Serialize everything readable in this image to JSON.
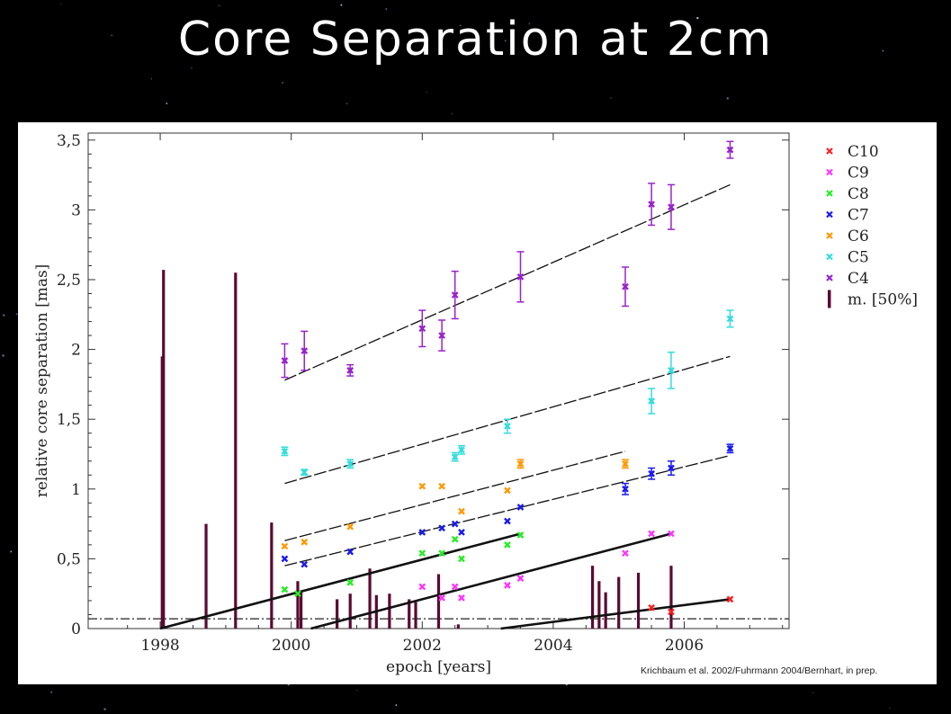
{
  "slide": {
    "title": "Core Separation at 2cm",
    "credit": "Krichbaum et al. 2002/Fuhrmann 2004/Bernhart, in prep."
  },
  "chart_data": {
    "type": "scatter",
    "xlabel": "epoch [years]",
    "ylabel": "relative core separation [mas]",
    "xlim": [
      1996.9,
      2007.6
    ],
    "ylim": [
      0,
      3.55
    ],
    "xticks": [
      1998,
      2000,
      2002,
      2004,
      2006
    ],
    "xtick_labels": [
      "1998",
      "2000",
      "2002",
      "2004",
      "2006"
    ],
    "yticks": [
      0,
      0.5,
      1,
      1.5,
      2,
      2.5,
      3,
      3.5
    ],
    "ytick_labels": [
      "0",
      "0,5",
      "1",
      "1,5",
      "2",
      "2,5",
      "3",
      "3,5"
    ],
    "legend_position": "right",
    "reference_line_y": 0.07,
    "series": [
      {
        "name": "C10",
        "color": "#ff2020",
        "points": [
          [
            2005.5,
            0.15
          ],
          [
            2005.8,
            0.12
          ],
          [
            2006.7,
            0.21
          ]
        ],
        "err": [],
        "fit": {
          "x": [
            2003.2,
            2006.7
          ],
          "y": [
            0.0,
            0.21
          ]
        }
      },
      {
        "name": "C9",
        "color": "#ff33ff",
        "points": [
          [
            2002.0,
            0.3
          ],
          [
            2002.3,
            0.22
          ],
          [
            2002.5,
            0.3
          ],
          [
            2002.6,
            0.22
          ],
          [
            2003.3,
            0.31
          ],
          [
            2003.5,
            0.36
          ],
          [
            2005.1,
            0.54
          ],
          [
            2005.5,
            0.68
          ],
          [
            2005.8,
            0.68
          ]
        ],
        "err": [],
        "fit": {
          "x": [
            2000.3,
            2005.8
          ],
          "y": [
            0.0,
            0.68
          ]
        }
      },
      {
        "name": "C8",
        "color": "#22ee22",
        "points": [
          [
            1999.9,
            0.28
          ],
          [
            2000.1,
            0.25
          ],
          [
            2000.9,
            0.33
          ],
          [
            2002.0,
            0.54
          ],
          [
            2002.3,
            0.54
          ],
          [
            2002.5,
            0.64
          ],
          [
            2002.6,
            0.5
          ],
          [
            2003.3,
            0.6
          ],
          [
            2003.5,
            0.67
          ]
        ],
        "err": [],
        "fit": {
          "x": [
            1998.0,
            2003.5
          ],
          "y": [
            0.0,
            0.68
          ]
        }
      },
      {
        "name": "C7",
        "color": "#1a1aee",
        "points": [
          [
            1999.9,
            0.5
          ],
          [
            2000.2,
            0.46
          ],
          [
            2000.9,
            0.55
          ],
          [
            2002.0,
            0.69
          ],
          [
            2002.3,
            0.72
          ],
          [
            2002.5,
            0.75
          ],
          [
            2002.6,
            0.69
          ],
          [
            2003.3,
            0.77
          ],
          [
            2003.5,
            0.87
          ],
          [
            2005.1,
            1.0
          ],
          [
            2005.5,
            1.11
          ],
          [
            2005.8,
            1.15
          ],
          [
            2006.7,
            1.29
          ]
        ],
        "err": [
          0,
          0,
          0,
          0,
          0,
          0,
          0,
          0,
          0,
          0.04,
          0.04,
          0.05,
          0.03
        ],
        "fit": {
          "x": [
            1999.9,
            2006.7
          ],
          "y": [
            0.45,
            1.24
          ]
        }
      },
      {
        "name": "C6",
        "color": "#ff9900",
        "points": [
          [
            1999.9,
            0.59
          ],
          [
            2000.2,
            0.62
          ],
          [
            2000.9,
            0.73
          ],
          [
            2002.0,
            1.02
          ],
          [
            2002.3,
            1.02
          ],
          [
            2002.6,
            0.84
          ],
          [
            2003.3,
            0.99
          ],
          [
            2003.5,
            1.18
          ],
          [
            2005.1,
            1.18
          ]
        ],
        "err": [
          0,
          0,
          0,
          0,
          0,
          0,
          0,
          0.03,
          0.03
        ],
        "fit": {
          "x": [
            1999.9,
            2005.1
          ],
          "y": [
            0.63,
            1.27
          ]
        }
      },
      {
        "name": "C5",
        "color": "#33dddd",
        "points": [
          [
            1999.9,
            1.27
          ],
          [
            2000.2,
            1.12
          ],
          [
            2000.9,
            1.18
          ],
          [
            2002.5,
            1.23
          ],
          [
            2002.6,
            1.28
          ],
          [
            2003.3,
            1.45
          ],
          [
            2005.5,
            1.63
          ],
          [
            2005.8,
            1.85
          ],
          [
            2006.7,
            2.22
          ]
        ],
        "err": [
          0.03,
          0.02,
          0.03,
          0.03,
          0.03,
          0.05,
          0.09,
          0.13,
          0.06
        ],
        "fit": {
          "x": [
            1999.9,
            2006.7
          ],
          "y": [
            1.04,
            1.95
          ]
        }
      },
      {
        "name": "C4",
        "color": "#9922cc",
        "points": [
          [
            1999.9,
            1.92
          ],
          [
            2000.2,
            1.99
          ],
          [
            2000.9,
            1.85
          ],
          [
            2002.0,
            2.15
          ],
          [
            2002.3,
            2.1
          ],
          [
            2002.5,
            2.39
          ],
          [
            2003.5,
            2.52
          ],
          [
            2005.1,
            2.45
          ],
          [
            2005.5,
            3.04
          ],
          [
            2005.8,
            3.02
          ],
          [
            2006.7,
            3.43
          ]
        ],
        "err": [
          0.12,
          0.14,
          0.04,
          0.13,
          0.11,
          0.17,
          0.18,
          0.14,
          0.15,
          0.16,
          0.06
        ],
        "fit": {
          "x": [
            1999.9,
            2006.7
          ],
          "y": [
            1.78,
            3.18
          ]
        }
      }
    ],
    "bars": {
      "name": "m. [50%]",
      "color": "#5a0a32",
      "items": [
        [
          1998.05,
          2.57
        ],
        [
          1998.03,
          1.95
        ],
        [
          1998.7,
          0.75
        ],
        [
          1999.15,
          2.55
        ],
        [
          1999.7,
          0.76
        ],
        [
          2000.1,
          0.34
        ],
        [
          2000.15,
          0.27
        ],
        [
          2000.7,
          0.21
        ],
        [
          2000.9,
          0.25
        ],
        [
          2001.2,
          0.43
        ],
        [
          2001.3,
          0.24
        ],
        [
          2001.5,
          0.25
        ],
        [
          2001.8,
          0.21
        ],
        [
          2001.9,
          0.19
        ],
        [
          2002.25,
          0.39
        ],
        [
          2002.55,
          0.03
        ],
        [
          2004.6,
          0.45
        ],
        [
          2004.7,
          0.34
        ],
        [
          2004.8,
          0.26
        ],
        [
          2005.0,
          0.37
        ],
        [
          2005.3,
          0.4
        ],
        [
          2005.8,
          0.45
        ]
      ]
    }
  }
}
